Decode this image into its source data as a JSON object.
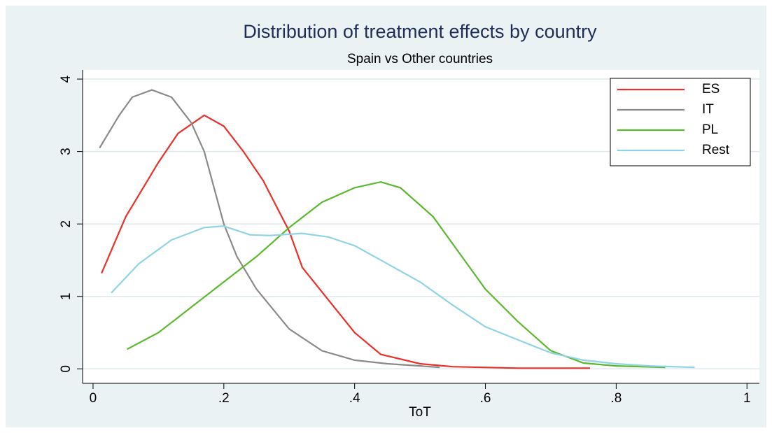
{
  "chart_data": {
    "type": "line",
    "title": "Distribution of treatment effects by country",
    "subtitle": "Spain vs Other countries",
    "x_label": "ToT",
    "xlim": [
      -0.016,
      1.019
    ],
    "ylim": [
      -0.2,
      4.126
    ],
    "xticks": [
      0,
      {
        "value": 0.2,
        "label": ".2"
      },
      {
        "value": 0.4,
        "label": ".4"
      },
      {
        "value": 0.6,
        "label": ".6"
      },
      {
        "value": 0.8,
        "label": ".8"
      },
      1
    ],
    "yticks": [
      0,
      1,
      2,
      3,
      4
    ],
    "grid": true,
    "legend": "upper-right",
    "series": [
      {
        "name": "ES",
        "color": "#e8312a",
        "x": [
          0.013,
          0.05,
          0.1,
          0.13,
          0.17,
          0.2,
          0.23,
          0.26,
          0.3,
          0.32,
          0.36,
          0.4,
          0.44,
          0.5,
          0.55,
          0.65,
          0.76
        ],
        "values": [
          1.32,
          2.1,
          2.85,
          3.25,
          3.5,
          3.35,
          3.0,
          2.6,
          1.9,
          1.4,
          0.95,
          0.5,
          0.2,
          0.07,
          0.03,
          0.01,
          0.01
        ]
      },
      {
        "name": "IT",
        "color": "#8a8a8a",
        "x": [
          0.01,
          0.04,
          0.06,
          0.09,
          0.12,
          0.15,
          0.17,
          0.2,
          0.22,
          0.25,
          0.3,
          0.35,
          0.4,
          0.45,
          0.5,
          0.53
        ],
        "values": [
          3.05,
          3.5,
          3.75,
          3.85,
          3.75,
          3.4,
          3.0,
          2.0,
          1.55,
          1.1,
          0.55,
          0.25,
          0.12,
          0.07,
          0.04,
          0.02
        ]
      },
      {
        "name": "PL",
        "color": "#5cb82e",
        "x": [
          0.052,
          0.1,
          0.15,
          0.2,
          0.25,
          0.3,
          0.35,
          0.4,
          0.44,
          0.47,
          0.52,
          0.56,
          0.6,
          0.65,
          0.7,
          0.75,
          0.8,
          0.875
        ],
        "values": [
          0.27,
          0.5,
          0.85,
          1.2,
          1.55,
          1.95,
          2.3,
          2.5,
          2.58,
          2.5,
          2.1,
          1.6,
          1.1,
          0.65,
          0.25,
          0.08,
          0.04,
          0.02
        ]
      },
      {
        "name": "Rest",
        "color": "#8fd3e6",
        "x": [
          0.028,
          0.07,
          0.12,
          0.17,
          0.2,
          0.24,
          0.27,
          0.32,
          0.36,
          0.4,
          0.45,
          0.5,
          0.55,
          0.6,
          0.65,
          0.7,
          0.75,
          0.8,
          0.85,
          0.92
        ],
        "values": [
          1.05,
          1.45,
          1.78,
          1.95,
          1.97,
          1.85,
          1.84,
          1.87,
          1.82,
          1.7,
          1.45,
          1.2,
          0.88,
          0.58,
          0.4,
          0.22,
          0.12,
          0.07,
          0.04,
          0.02
        ]
      }
    ]
  }
}
